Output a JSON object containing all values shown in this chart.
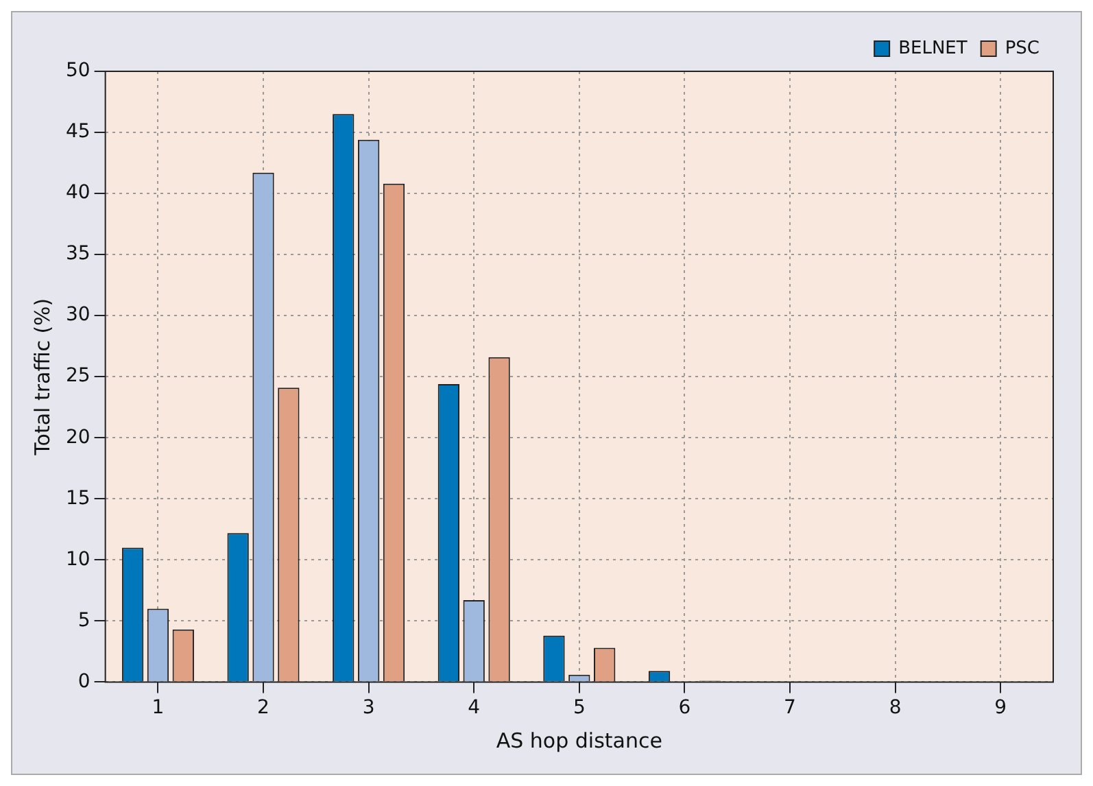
{
  "chart_data": {
    "type": "bar",
    "xlabel": "AS hop distance",
    "ylabel": "Total traffic (%)",
    "categories": [
      "1",
      "2",
      "3",
      "4",
      "5",
      "6",
      "7",
      "8",
      "9"
    ],
    "series": [
      {
        "name": "BELNET",
        "color": "#0077bb",
        "values": [
          11,
          12.2,
          46.5,
          24.4,
          3.8,
          0.9,
          0,
          0,
          0
        ]
      },
      {
        "color": "#9fb8dd",
        "values": [
          6,
          41.7,
          44.4,
          6.7,
          0.6,
          0,
          0,
          0,
          0
        ]
      },
      {
        "name": "PSC",
        "color": "#e0a084",
        "values": [
          4.3,
          24.1,
          40.8,
          26.6,
          2.8,
          0.1,
          0,
          0,
          0
        ]
      }
    ],
    "ylim": [
      0,
      50
    ],
    "yticks": [
      0,
      5,
      10,
      15,
      20,
      25,
      30,
      35,
      40,
      45,
      50
    ],
    "grid": true,
    "legend": "top right"
  }
}
